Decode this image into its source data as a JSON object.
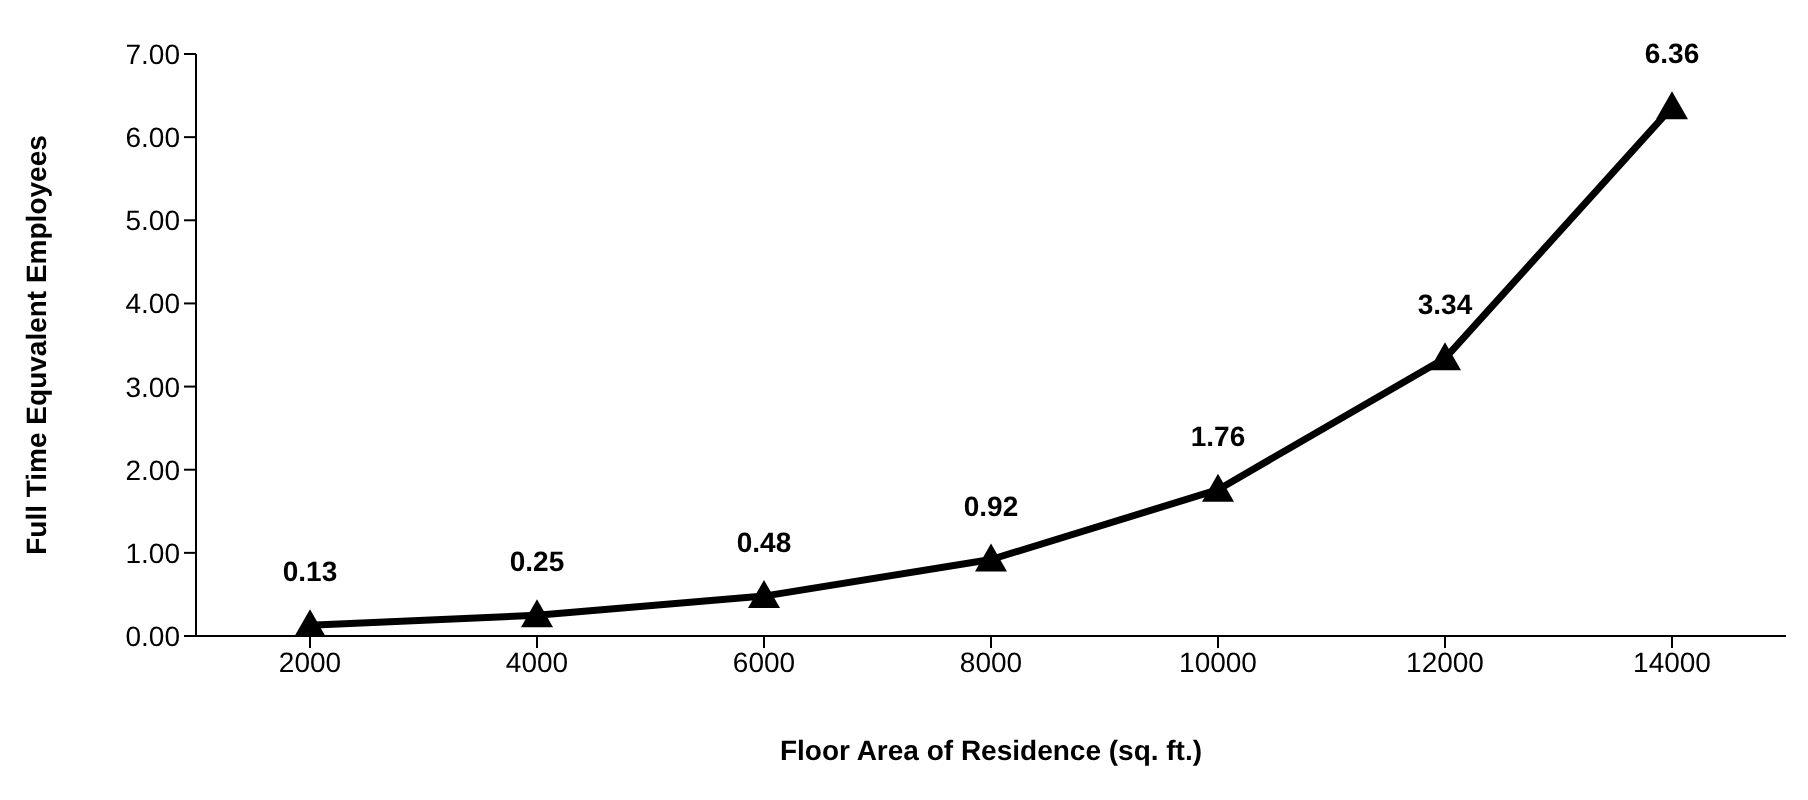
{
  "chart_data": {
    "type": "line",
    "xlabel": "Floor Area of Residence (sq. ft.)",
    "ylabel": "Full Time Equvalent Employees",
    "categories": [
      "2000",
      "4000",
      "6000",
      "8000",
      "10000",
      "12000",
      "14000"
    ],
    "series": [
      {
        "color": "#000000",
        "values": [
          0.13,
          0.25,
          0.48,
          0.92,
          1.76,
          3.34,
          6.36
        ]
      }
    ],
    "ylim": [
      0,
      7
    ],
    "yticks": [
      {
        "value": 0,
        "label": "0.00"
      },
      {
        "value": 1,
        "label": "1.00"
      },
      {
        "value": 2,
        "label": "2.00"
      },
      {
        "value": 3,
        "label": "3.00"
      },
      {
        "value": 4,
        "label": "4.00"
      },
      {
        "value": 5,
        "label": "5.00"
      },
      {
        "value": 6,
        "label": "6.00"
      },
      {
        "value": 7,
        "label": "7.00"
      }
    ],
    "data_labels": true,
    "marker": "triangle",
    "line_style": "solid",
    "grid": false,
    "legend": false
  }
}
